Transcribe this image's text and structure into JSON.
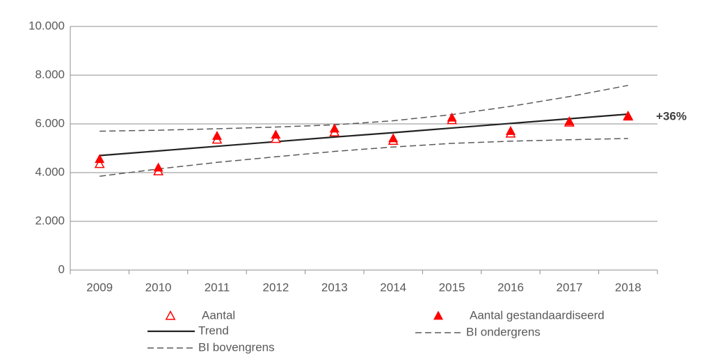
{
  "chart_data": {
    "type": "line",
    "categories": [
      "2009",
      "2010",
      "2011",
      "2012",
      "2013",
      "2014",
      "2015",
      "2016",
      "2017",
      "2018"
    ],
    "series": [
      {
        "name": "Aantal",
        "color": "#ff0000",
        "marker": "open-triangle",
        "values": [
          4350,
          4050,
          5350,
          5380,
          5650,
          5300,
          6150,
          5600,
          6050,
          6300
        ]
      },
      {
        "name": "Aantal gestandaardiseerd",
        "color": "#ff0000",
        "marker": "filled-triangle",
        "values": [
          4550,
          4200,
          5500,
          5550,
          5800,
          5400,
          6250,
          5700,
          6100,
          6330
        ]
      },
      {
        "name": "Trend",
        "color": "#222222",
        "dash": "solid",
        "values": [
          4700,
          4890,
          5080,
          5270,
          5460,
          5640,
          5830,
          6020,
          6210,
          6400
        ]
      },
      {
        "name": "BI ondergrens",
        "color": "#595959",
        "dash": "dashed",
        "values": [
          3850,
          4150,
          4420,
          4650,
          4870,
          5050,
          5200,
          5290,
          5350,
          5400
        ]
      },
      {
        "name": "BI bovengrens",
        "color": "#595959",
        "dash": "dashed",
        "values": [
          5700,
          5740,
          5800,
          5870,
          5960,
          6130,
          6380,
          6720,
          7120,
          7580
        ]
      }
    ],
    "annotations": [
      "+36%"
    ],
    "ylim": [
      0,
      10000
    ],
    "yticks": [
      {
        "value": 0,
        "label": "0"
      },
      {
        "value": 2000,
        "label": "2.000"
      },
      {
        "value": 4000,
        "label": "4.000"
      },
      {
        "value": 6000,
        "label": "6.000"
      },
      {
        "value": 8000,
        "label": "8.000"
      },
      {
        "value": 10000,
        "label": "10.000"
      }
    ],
    "grid": true,
    "legend": "bottom"
  }
}
